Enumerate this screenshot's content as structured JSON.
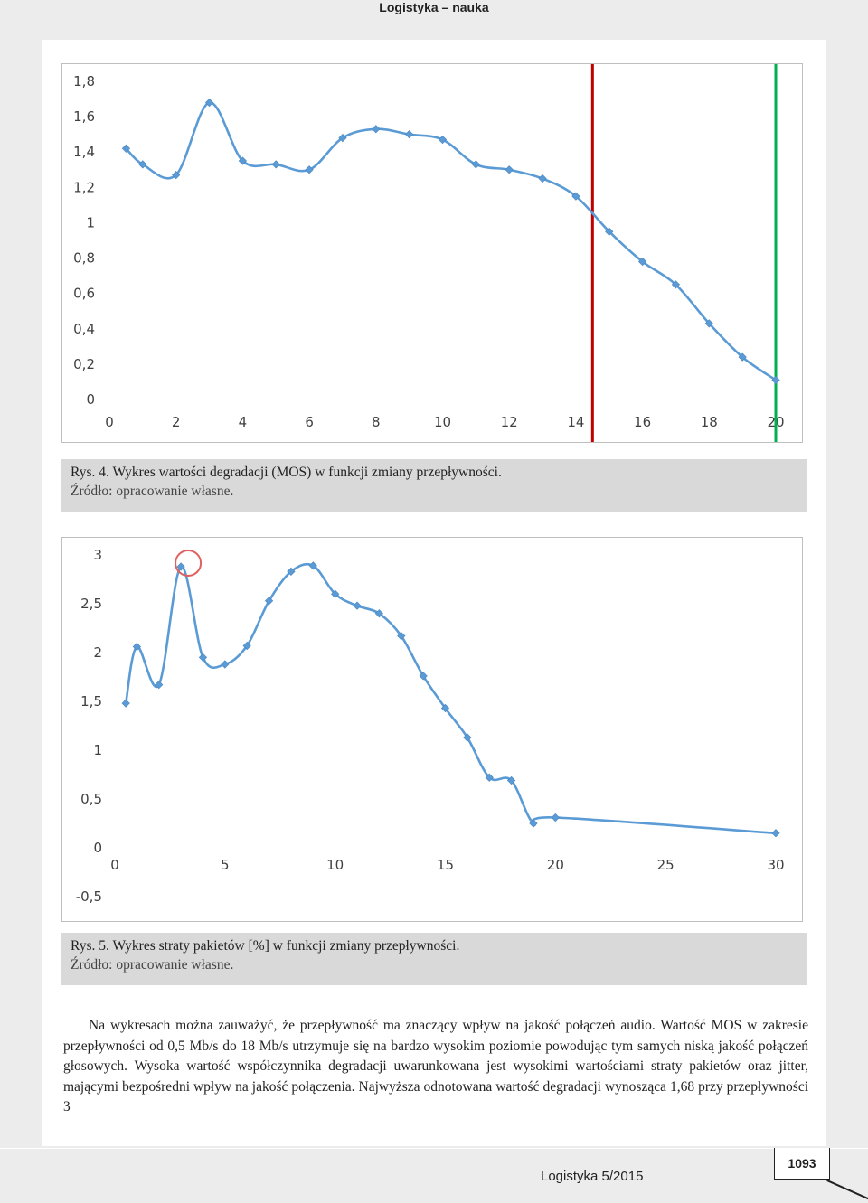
{
  "header": {
    "title": "Logistyka – nauka"
  },
  "figure4": {
    "caption": "Rys. 4. Wykres wartości degradacji (MOS) w funkcji zmiany przepływności.",
    "source": "Źródło: opracowanie własne."
  },
  "figure5": {
    "caption": "Rys. 5. Wykres straty pakietów [%] w funkcji zmiany przepływności.",
    "source": "Źródło: opracowanie własne."
  },
  "body": {
    "text": "Na wykresach można zauważyć, że przepływność ma znaczący wpływ na jakość połączeń audio. Wartość MOS w zakresie przepływności od 0,5 Mb/s do 18 Mb/s utrzymuje się na bardzo wysokim poziomie powodując tym samych niską jakość połączeń głosowych. Wysoka wartość współczynnika degradacji uwarunkowana jest wysokimi wartościami straty pakietów oraz jitter, mającymi bezpośredni wpływ na jakość połączenia. Najwyższa odnotowana wartość degradacji wynosząca 1,68 przy przepływności 3"
  },
  "footer": {
    "journal": "Logistyka 5/2015",
    "page_number": "1093"
  },
  "chart_data": [
    {
      "type": "line",
      "title": "",
      "xlabel": "",
      "ylabel": "",
      "x": [
        0.5,
        1,
        2,
        3,
        4,
        5,
        6,
        7,
        8,
        9,
        10,
        11,
        12,
        13,
        14,
        15,
        16,
        17,
        18,
        19,
        20
      ],
      "series": [
        {
          "values": [
            1.42,
            1.33,
            1.27,
            1.68,
            1.35,
            1.33,
            1.3,
            1.48,
            1.53,
            1.5,
            1.47,
            1.33,
            1.3,
            1.25,
            1.15,
            0.95,
            0.78,
            0.65,
            0.43,
            0.24,
            0.11
          ],
          "color": "#5b9bd5"
        }
      ],
      "xlim": [
        0,
        20
      ],
      "ylim": [
        0,
        1.8
      ],
      "xticks": [
        "0",
        "2",
        "4",
        "6",
        "8",
        "10",
        "12",
        "14",
        "16",
        "18",
        "20"
      ],
      "yticks": [
        "0",
        "0,2",
        "0,4",
        "0,6",
        "0,8",
        "1",
        "1,2",
        "1,4",
        "1,6",
        "1,8"
      ],
      "vertical_markers": [
        {
          "x": 14.5,
          "color": "#c00000"
        },
        {
          "x": 20,
          "color": "#00b050"
        }
      ],
      "grid": false,
      "legend": "none"
    },
    {
      "type": "line",
      "title": "",
      "xlabel": "",
      "ylabel": "",
      "x": [
        0.5,
        1,
        2,
        3,
        4,
        5,
        6,
        7,
        8,
        9,
        10,
        11,
        12,
        13,
        14,
        15,
        16,
        17,
        18,
        19,
        20,
        30
      ],
      "series": [
        {
          "values": [
            1.48,
            2.06,
            1.67,
            2.88,
            1.95,
            1.88,
            2.07,
            2.53,
            2.83,
            2.89,
            2.6,
            2.48,
            2.4,
            2.17,
            1.76,
            1.43,
            1.13,
            0.72,
            0.69,
            0.25,
            0.31,
            0.15
          ],
          "color": "#5b9bd5"
        }
      ],
      "xlim": [
        0,
        30
      ],
      "ylim": [
        -0.5,
        3
      ],
      "xticks": [
        "0",
        "5",
        "10",
        "15",
        "20",
        "25",
        "30"
      ],
      "yticks": [
        "-0,5",
        "0",
        "0,5",
        "1",
        "1,5",
        "2",
        "2,5",
        "3"
      ],
      "highlight": {
        "x": 3,
        "y": 2.88,
        "color": "#e06060"
      },
      "grid": false,
      "legend": "none"
    }
  ]
}
